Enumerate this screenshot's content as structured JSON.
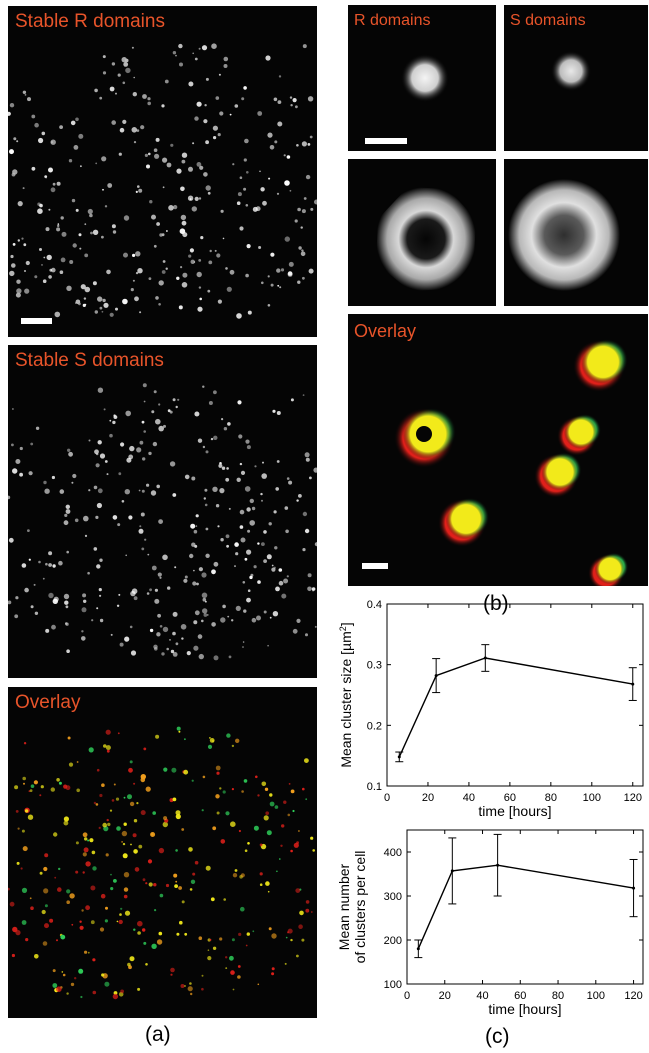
{
  "panel_a": {
    "caption": "(a)",
    "top": {
      "label": "Stable R domains"
    },
    "middle": {
      "label": "Stable S domains"
    },
    "bottom": {
      "label": "Overlay"
    }
  },
  "panel_b": {
    "caption": "(b)",
    "r_label": "R domains",
    "s_label": "S domains",
    "overlay_label": "Overlay"
  },
  "panel_c": {
    "caption": "(c)"
  },
  "colors": {
    "label": "#e8542a",
    "red": "#e0201a",
    "yellow": "#f2ea1a",
    "green": "#2fd05a",
    "background": "#050505"
  },
  "chart_data": [
    {
      "type": "line",
      "x": [
        6,
        24,
        48,
        120
      ],
      "y": [
        0.148,
        0.282,
        0.311,
        0.268
      ],
      "error": [
        0.008,
        0.028,
        0.022,
        0.027
      ],
      "xlabel": "time [hours]",
      "ylabel_prefix": "Mean cluster size [",
      "ylabel_unit": "µm",
      "ylabel_sup": "2",
      "ylabel_suffix": "]",
      "xlim": [
        0,
        125
      ],
      "ylim": [
        0.1,
        0.4
      ],
      "xticks": [
        "0",
        "20",
        "40",
        "60",
        "80",
        "100",
        "120"
      ],
      "yticks": [
        "0.1",
        "0.2",
        "0.3",
        "0.4"
      ],
      "grid": false
    },
    {
      "type": "line",
      "x": [
        6,
        24,
        48,
        120
      ],
      "y": [
        180,
        357,
        370,
        318
      ],
      "error": [
        20,
        75,
        70,
        65
      ],
      "xlabel": "time [hours]",
      "ylabel_line1": "Mean number",
      "ylabel_line2": "of clusters per cell",
      "xlim": [
        0,
        125
      ],
      "ylim": [
        100,
        450
      ],
      "xticks": [
        "0",
        "20",
        "40",
        "60",
        "80",
        "100",
        "120"
      ],
      "yticks": [
        "100",
        "200",
        "300",
        "400"
      ],
      "grid": false
    }
  ]
}
